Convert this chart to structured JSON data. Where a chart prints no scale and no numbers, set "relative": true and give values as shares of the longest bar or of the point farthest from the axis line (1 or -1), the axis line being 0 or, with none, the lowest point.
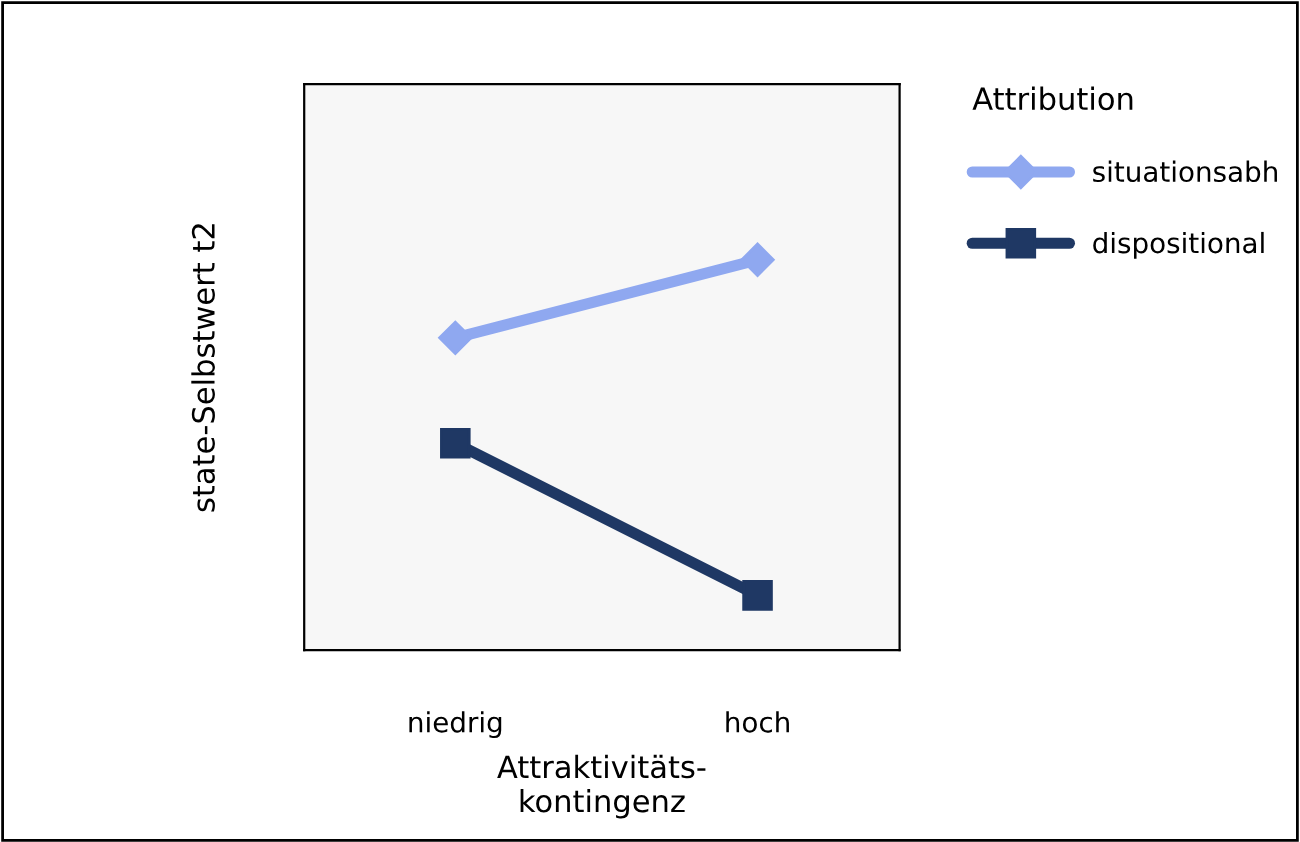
{
  "chart_data": {
    "type": "line",
    "relative": true,
    "categories": [
      "niedrig",
      "hoch"
    ],
    "xlabel": "Attraktivitäts-\nkontingenz",
    "ylabel": "state-Selbstwert t2",
    "legend_title": "Attribution",
    "legend": "right",
    "grid": false,
    "line_style": "solid",
    "series": [
      {
        "name": "situationsabh",
        "color": "#8fa8f0",
        "values": [
          0.8,
          1.0
        ],
        "marker": "diamond"
      },
      {
        "name": "dispositional",
        "color": "#1f3864",
        "values": [
          0.53,
          0.14
        ],
        "marker": "square"
      }
    ]
  }
}
